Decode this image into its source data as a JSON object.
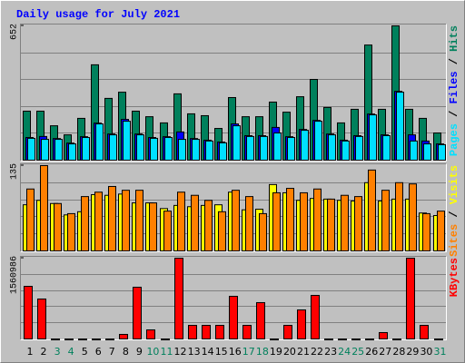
{
  "title": "Daily usage for July 2021",
  "legend_separator": " / ",
  "chart_data": [
    {
      "type": "bar",
      "ylim": [
        0,
        652
      ],
      "yticks": [
        652
      ],
      "series": [
        {
          "name": "Hits",
          "color": "#00805c",
          "values": [
            238,
            238,
            167,
            123,
            203,
            463,
            300,
            330,
            238,
            211,
            181,
            322,
            225,
            216,
            154,
            304,
            211,
            211,
            282,
            233,
            308,
            392,
            256,
            181,
            247,
            559,
            247,
            652,
            247,
            203,
            132
          ]
        },
        {
          "name": "Files",
          "color": "#0000ff",
          "values": [
            110,
            115,
            105,
            83,
            114,
            180,
            127,
            198,
            127,
            110,
            114,
            137,
            105,
            97,
            88,
            176,
            119,
            119,
            159,
            114,
            149,
            193,
            127,
            97,
            119,
            224,
            123,
            334,
            123,
            93,
            79
          ]
        },
        {
          "name": "Pages",
          "color": "#00e0ff",
          "values": [
            106,
            101,
            101,
            79,
            110,
            176,
            123,
            189,
            123,
            106,
            110,
            101,
            101,
            93,
            84,
            167,
            115,
            115,
            132,
            110,
            145,
            189,
            123,
            93,
            115,
            220,
            119,
            330,
            93,
            79,
            75
          ]
        }
      ]
    },
    {
      "type": "bar",
      "ylim": [
        0,
        135
      ],
      "yticks": [
        135
      ],
      "series": [
        {
          "name": "Visits",
          "color": "#ffff00",
          "values": [
            73,
            80,
            75,
            57,
            62,
            89,
            88,
            90,
            76,
            76,
            67,
            72,
            70,
            72,
            73,
            93,
            65,
            66,
            105,
            92,
            80,
            83,
            82,
            80,
            79,
            108,
            79,
            82,
            82,
            60,
            56
          ]
        },
        {
          "name": "Sites",
          "color": "#ff8000",
          "values": [
            98,
            135,
            75,
            59,
            86,
            93,
            102,
            96,
            96,
            76,
            63,
            93,
            88,
            80,
            62,
            96,
            86,
            59,
            92,
            99,
            92,
            98,
            82,
            88,
            86,
            128,
            96,
            108,
            106,
            59,
            63
          ]
        }
      ]
    },
    {
      "type": "bar",
      "ylim": [
        0,
        1560986
      ],
      "yticks": [
        1560986
      ],
      "categories": [
        "1",
        "2",
        "3",
        "4",
        "5",
        "6",
        "7",
        "8",
        "9",
        "10",
        "11",
        "12",
        "13",
        "14",
        "15",
        "16",
        "17",
        "18",
        "19",
        "20",
        "21",
        "22",
        "23",
        "24",
        "25",
        "26",
        "27",
        "28",
        "29",
        "30",
        "31"
      ],
      "category_colors": [
        "#000000",
        "#000000",
        "#00805c",
        "#00805c",
        "#000000",
        "#000000",
        "#000000",
        "#000000",
        "#000000",
        "#00805c",
        "#00805c",
        "#000000",
        "#000000",
        "#000000",
        "#000000",
        "#000000",
        "#00805c",
        "#00805c",
        "#000000",
        "#000000",
        "#000000",
        "#000000",
        "#000000",
        "#00805c",
        "#00805c",
        "#000000",
        "#000000",
        "#000000",
        "#000000",
        "#000000",
        "#00805c"
      ],
      "series": [
        {
          "name": "KBytes",
          "color": "#ff0000",
          "values": [
            1017000,
            772000,
            0,
            0,
            0,
            0,
            0,
            88000,
            1000000,
            175000,
            0,
            1560986,
            263000,
            263000,
            263000,
            824000,
            263000,
            702000,
            0,
            263000,
            561000,
            842000,
            0,
            0,
            0,
            0,
            123000,
            0,
            1560986,
            263000,
            0
          ]
        }
      ]
    }
  ]
}
